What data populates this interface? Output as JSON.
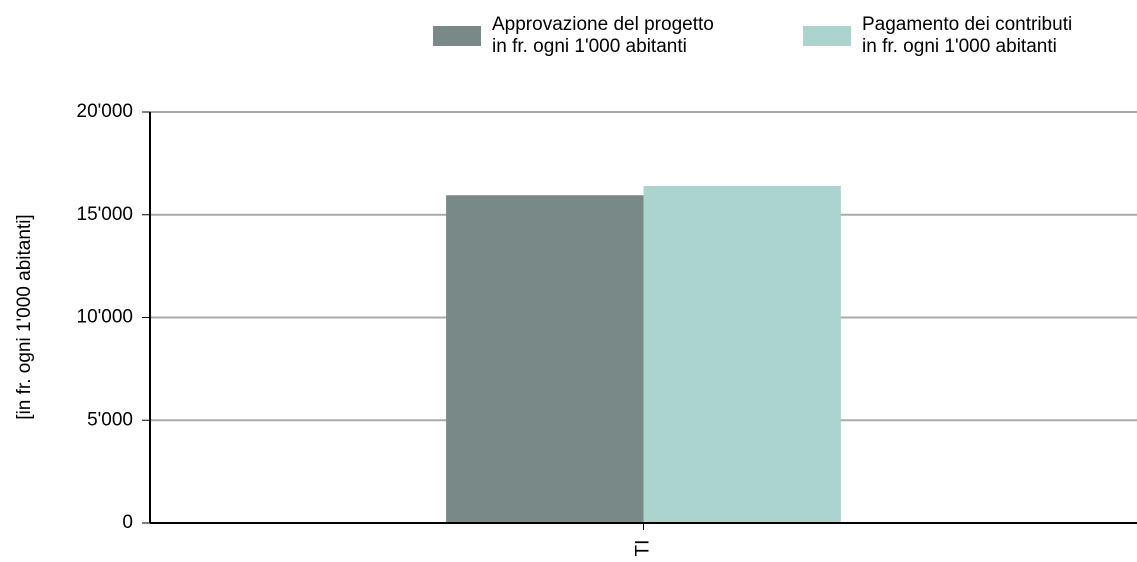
{
  "chart_data": {
    "type": "bar",
    "y_label": "[in fr. ogni 1'000 abitanti]",
    "categories": [
      "TI"
    ],
    "series": [
      {
        "name": "Approvazione del progetto\nin fr. ogni 1'000 abitanti",
        "color": "#798987",
        "values": [
          15950
        ]
      },
      {
        "name": "Pagamento dei contributi\nin fr. ogni 1'000 abitanti",
        "color": "#acd4cf",
        "values": [
          16400
        ]
      }
    ],
    "ylim": [
      0,
      20000
    ],
    "yticks": [
      {
        "value": 0,
        "label": "0"
      },
      {
        "value": 5000,
        "label": "5'000"
      },
      {
        "value": 10000,
        "label": "10'000"
      },
      {
        "value": 15000,
        "label": "15'000"
      },
      {
        "value": 20000,
        "label": "20'000"
      }
    ],
    "grid": true
  }
}
